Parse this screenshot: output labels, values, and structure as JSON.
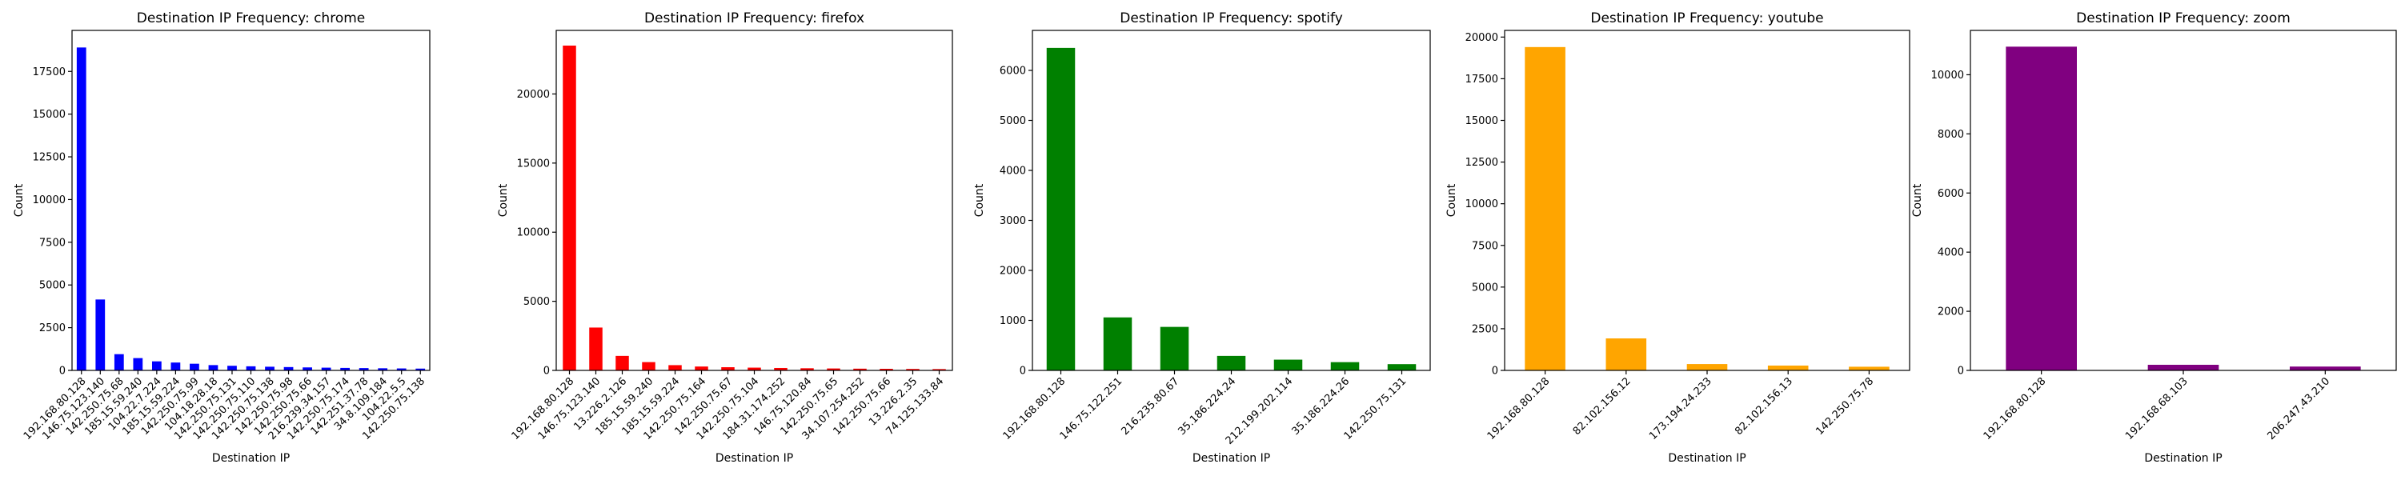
{
  "chart_data": [
    {
      "type": "bar",
      "title": "Destination IP Frequency: chrome",
      "xlabel": "Destination IP",
      "ylabel": "Count",
      "color": "#0000ff",
      "ylim": [
        0,
        19900
      ],
      "yticks": [
        0,
        2500,
        5000,
        7500,
        10000,
        12500,
        15000,
        17500
      ],
      "categories": [
        "192.168.80.128",
        "146.75.123.140",
        "142.250.75.68",
        "185.15.59.240",
        "104.22.7.224",
        "185.15.59.224",
        "142.250.75.99",
        "104.18.28.18",
        "142.250.75.131",
        "142.250.75.110",
        "142.250.75.138",
        "142.250.75.98",
        "142.250.75.66",
        "216.239.34.157",
        "142.250.75.174",
        "142.251.37.78",
        "34.8.109.184",
        "104.22.5.5",
        "142.250.75.138"
      ],
      "values": [
        18900,
        4150,
        950,
        720,
        530,
        460,
        390,
        310,
        270,
        240,
        215,
        195,
        175,
        160,
        145,
        135,
        125,
        115,
        105
      ]
    },
    {
      "type": "bar",
      "title": "Destination IP Frequency: firefox",
      "xlabel": "Destination IP",
      "ylabel": "Count",
      "color": "#ff0000",
      "ylim": [
        0,
        24600
      ],
      "yticks": [
        0,
        5000,
        10000,
        15000,
        20000
      ],
      "categories": [
        "192.168.80.128",
        "146.75.123.140",
        "13.226.2.126",
        "185.15.59.240",
        "185.15.59.224",
        "142.250.75.164",
        "142.250.75.67",
        "142.250.75.104",
        "184.31.174.252",
        "146.75.120.84",
        "142.250.75.65",
        "34.107.254.252",
        "142.250.75.66",
        "13.226.2.35",
        "74.125.133.84"
      ],
      "values": [
        23500,
        3100,
        1050,
        600,
        380,
        280,
        230,
        200,
        175,
        155,
        140,
        125,
        115,
        105,
        95
      ]
    },
    {
      "type": "bar",
      "title": "Destination IP Frequency: spotify",
      "xlabel": "Destination IP",
      "ylabel": "Count",
      "color": "#008000",
      "ylim": [
        0,
        6800
      ],
      "yticks": [
        0,
        1000,
        2000,
        3000,
        4000,
        5000,
        6000
      ],
      "categories": [
        "192.168.80.128",
        "146.75.122.251",
        "216.235.80.67",
        "35.186.224.24",
        "212.199.202.114",
        "35.186.224.26",
        "142.250.75.131"
      ],
      "values": [
        6450,
        1060,
        870,
        290,
        215,
        165,
        125
      ]
    },
    {
      "type": "bar",
      "title": "Destination IP Frequency: youtube",
      "xlabel": "Destination IP",
      "ylabel": "Count",
      "color": "#ffa500",
      "ylim": [
        0,
        20400
      ],
      "yticks": [
        0,
        2500,
        5000,
        7500,
        10000,
        12500,
        15000,
        17500,
        20000
      ],
      "categories": [
        "192.168.80.128",
        "82.102.156.12",
        "173.194.24.233",
        "82.102.156.13",
        "142.250.75.78"
      ],
      "values": [
        19400,
        1920,
        380,
        290,
        220
      ]
    },
    {
      "type": "bar",
      "title": "Destination IP Frequency: zoom",
      "xlabel": "Destination IP",
      "ylabel": "Count",
      "color": "#800080",
      "ylim": [
        0,
        11500
      ],
      "yticks": [
        0,
        2000,
        4000,
        6000,
        8000,
        10000
      ],
      "categories": [
        "192.168.80.128",
        "192.168.68.103",
        "206.247.43.210"
      ],
      "values": [
        10950,
        190,
        130
      ]
    }
  ]
}
